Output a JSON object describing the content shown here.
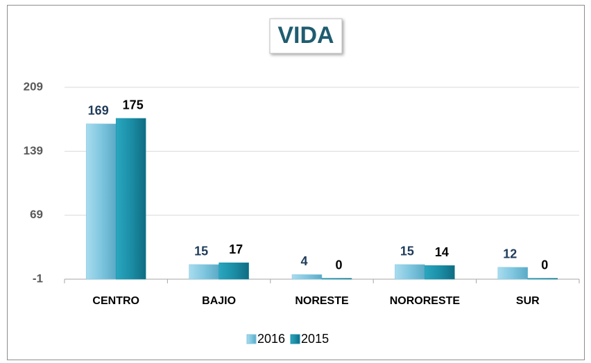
{
  "chart_data": {
    "type": "bar",
    "title": "VIDA",
    "categories": [
      "CENTRO",
      "BAJIO",
      "NORESTE",
      "NORORESTE",
      "SUR"
    ],
    "series": [
      {
        "name": "2016",
        "color": "#7fc6df",
        "label_color": "#1f3b5a",
        "values": [
          169,
          15,
          4,
          15,
          12
        ]
      },
      {
        "name": "2015",
        "color": "#1b8ea6",
        "label_color": "#000000",
        "values": [
          175,
          17,
          0,
          14,
          0
        ]
      }
    ],
    "ylim": [
      -1,
      209
    ],
    "yticks": [
      -1,
      69,
      139,
      209
    ],
    "grid": true
  }
}
